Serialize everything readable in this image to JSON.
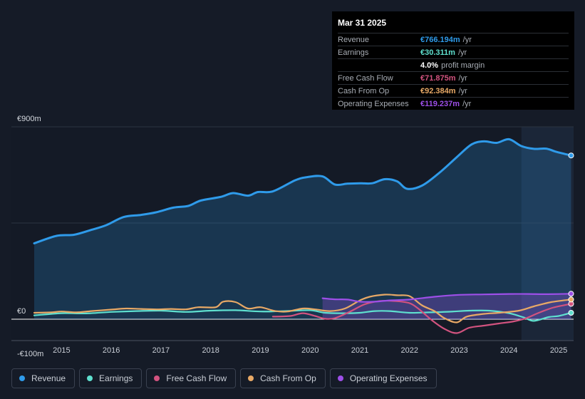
{
  "tooltip": {
    "date": "Mar 31 2025",
    "rows": [
      {
        "label": "Revenue",
        "value": "€766.194m",
        "unit": "/yr",
        "color": "#2f9bea"
      },
      {
        "label": "Earnings",
        "value": "€30.311m",
        "unit": "/yr",
        "color": "#5fe0cf"
      },
      {
        "label": "",
        "value": "4.0%",
        "unit": "profit margin",
        "color": "#ffffff"
      },
      {
        "label": "Free Cash Flow",
        "value": "€71.875m",
        "unit": "/yr",
        "color": "#d2537f"
      },
      {
        "label": "Cash From Op",
        "value": "€92.384m",
        "unit": "/yr",
        "color": "#e8a966"
      },
      {
        "label": "Operating Expenses",
        "value": "€119.237m",
        "unit": "/yr",
        "color": "#9d4fe8"
      }
    ]
  },
  "legend": [
    {
      "label": "Revenue",
      "color": "#2f9bea"
    },
    {
      "label": "Earnings",
      "color": "#5fe0cf"
    },
    {
      "label": "Free Cash Flow",
      "color": "#d2537f"
    },
    {
      "label": "Cash From Op",
      "color": "#e8a966"
    },
    {
      "label": "Operating Expenses",
      "color": "#9d4fe8"
    }
  ],
  "chart_data": {
    "type": "area",
    "title": "",
    "xlabel": "",
    "ylabel": "",
    "ylim": [
      -100,
      900
    ],
    "y_tick_labels": [
      "€900m",
      "€0",
      "-€100m"
    ],
    "y_ticks": [
      900,
      0,
      -100
    ],
    "xlim": [
      2014.45,
      2025.3
    ],
    "x_ticks": [
      2015,
      2016,
      2017,
      2018,
      2019,
      2020,
      2021,
      2022,
      2023,
      2024,
      2025
    ],
    "x_tick_labels": [
      "2015",
      "2016",
      "2017",
      "2018",
      "2019",
      "2020",
      "2021",
      "2022",
      "2023",
      "2024",
      "2025"
    ],
    "forecast_shade_start": 2024.25,
    "series": [
      {
        "name": "Revenue",
        "color": "#2f9bea",
        "fill": true,
        "x": [
          2014.45,
          2014.9,
          2015.25,
          2015.6,
          2015.9,
          2016.25,
          2016.6,
          2016.9,
          2017.25,
          2017.55,
          2017.8,
          2018.2,
          2018.45,
          2018.75,
          2018.95,
          2019.25,
          2019.7,
          2019.95,
          2020.25,
          2020.5,
          2020.75,
          2021.0,
          2021.25,
          2021.5,
          2021.75,
          2021.95,
          2022.25,
          2022.6,
          2022.95,
          2023.25,
          2023.5,
          2023.75,
          2024.0,
          2024.25,
          2024.5,
          2024.75,
          2024.95,
          2025.25
        ],
        "values": [
          355,
          390,
          395,
          418,
          440,
          478,
          488,
          500,
          522,
          530,
          555,
          572,
          590,
          578,
          595,
          598,
          650,
          665,
          668,
          630,
          634,
          636,
          636,
          655,
          645,
          610,
          625,
          685,
          758,
          818,
          832,
          825,
          842,
          810,
          797,
          798,
          783,
          766
        ]
      },
      {
        "name": "Earnings",
        "color": "#5fe0cf",
        "fill": false,
        "x": [
          2014.45,
          2015.0,
          2015.5,
          2016.0,
          2016.5,
          2017.0,
          2017.5,
          2018.0,
          2018.5,
          2019.0,
          2019.5,
          2020.0,
          2020.3,
          2020.7,
          2021.0,
          2021.3,
          2021.6,
          2022.0,
          2022.4,
          2022.8,
          2023.2,
          2023.6,
          2024.0,
          2024.3,
          2024.5,
          2024.8,
          2025.0,
          2025.25
        ],
        "values": [
          18,
          28,
          27,
          34,
          38,
          40,
          34,
          40,
          42,
          36,
          38,
          42,
          30,
          28,
          30,
          38,
          38,
          30,
          32,
          35,
          40,
          40,
          28,
          8,
          -8,
          10,
          15,
          30
        ]
      },
      {
        "name": "Free Cash Flow",
        "color": "#d2537f",
        "fill": false,
        "x": [
          2019.25,
          2019.6,
          2019.85,
          2020.1,
          2020.3,
          2020.5,
          2020.8,
          2021.1,
          2021.4,
          2021.7,
          2022.0,
          2022.2,
          2022.45,
          2022.7,
          2022.95,
          2023.2,
          2023.5,
          2023.8,
          2024.1,
          2024.35,
          2024.6,
          2024.9,
          2025.25
        ],
        "values": [
          12,
          15,
          28,
          15,
          2,
          5,
          35,
          70,
          85,
          85,
          75,
          45,
          -5,
          -45,
          -65,
          -40,
          -30,
          -20,
          -10,
          5,
          30,
          55,
          72
        ]
      },
      {
        "name": "Cash From Op",
        "color": "#e8a966",
        "fill": false,
        "x": [
          2014.45,
          2014.8,
          2015.0,
          2015.3,
          2015.6,
          2016.0,
          2016.3,
          2016.6,
          2016.95,
          2017.2,
          2017.5,
          2017.75,
          2018.1,
          2018.25,
          2018.5,
          2018.75,
          2019.0,
          2019.3,
          2019.55,
          2019.85,
          2020.1,
          2020.4,
          2020.7,
          2021.0,
          2021.2,
          2021.5,
          2021.75,
          2022.0,
          2022.25,
          2022.5,
          2022.7,
          2022.95,
          2023.15,
          2023.5,
          2023.8,
          2024.2,
          2024.5,
          2024.85,
          2025.25
        ],
        "values": [
          30,
          32,
          36,
          32,
          38,
          45,
          50,
          48,
          46,
          48,
          46,
          56,
          56,
          82,
          80,
          50,
          56,
          38,
          36,
          50,
          46,
          38,
          50,
          88,
          105,
          115,
          112,
          108,
          65,
          38,
          5,
          -15,
          12,
          25,
          30,
          40,
          60,
          80,
          92
        ]
      },
      {
        "name": "Operating Expenses",
        "color": "#9d4fe8",
        "fill": true,
        "x": [
          2020.25,
          2020.5,
          2020.75,
          2021.0,
          2021.3,
          2021.6,
          2022.0,
          2022.5,
          2023.0,
          2023.5,
          2024.0,
          2024.4,
          2024.8,
          2025.25
        ],
        "values": [
          98,
          93,
          92,
          82,
          82,
          88,
          92,
          105,
          114,
          116,
          118,
          118,
          117,
          119
        ]
      }
    ]
  }
}
